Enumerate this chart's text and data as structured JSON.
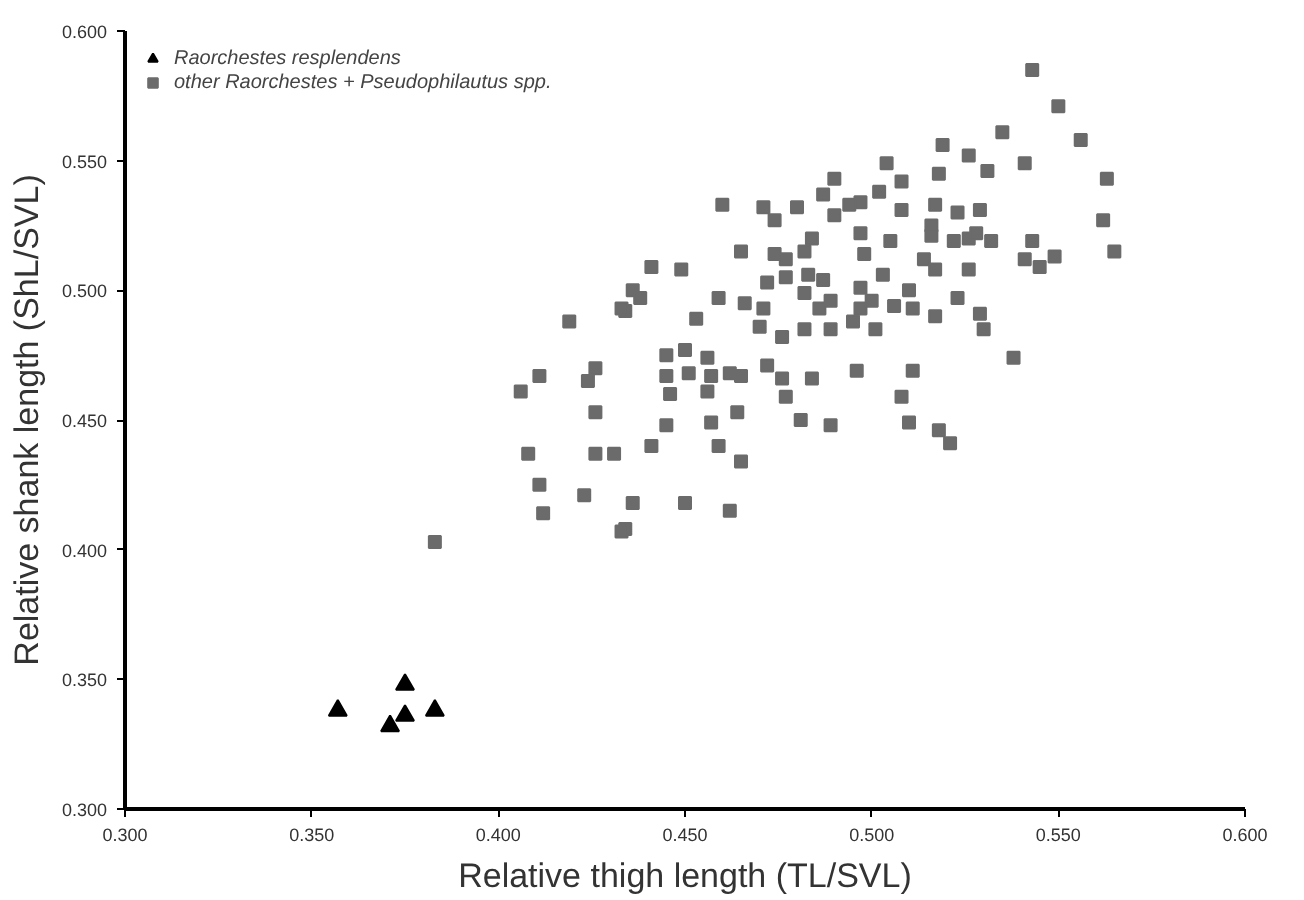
{
  "chart_data": {
    "type": "scatter",
    "xlabel": "Relative thigh length (TL/SVL)",
    "ylabel": "Relative shank length (ShL/SVL)",
    "xlim": [
      0.3,
      0.6
    ],
    "ylim": [
      0.3,
      0.6
    ],
    "xticks": [
      {
        "value": 0.3,
        "label": "0.300"
      },
      {
        "value": 0.35,
        "label": "0.350"
      },
      {
        "value": 0.4,
        "label": "0.400"
      },
      {
        "value": 0.45,
        "label": "0.450"
      },
      {
        "value": 0.5,
        "label": "0.500"
      },
      {
        "value": 0.55,
        "label": "0.550"
      },
      {
        "value": 0.6,
        "label": "0.600"
      }
    ],
    "yticks": [
      {
        "value": 0.3,
        "label": "0.300"
      },
      {
        "value": 0.35,
        "label": "0.350"
      },
      {
        "value": 0.4,
        "label": "0.400"
      },
      {
        "value": 0.45,
        "label": "0.450"
      },
      {
        "value": 0.5,
        "label": "0.500"
      },
      {
        "value": 0.55,
        "label": "0.550"
      },
      {
        "value": 0.6,
        "label": "0.600"
      }
    ],
    "grid": false,
    "legend": "top left",
    "series": [
      {
        "name": "Raorchestes resplendens",
        "color": "#000000",
        "marker": "triangle",
        "x": [
          0.357,
          0.371,
          0.375,
          0.375,
          0.383
        ],
        "values": [
          0.338,
          0.332,
          0.348,
          0.336,
          0.338
        ]
      },
      {
        "name": "other Raorchestes + Pseudophilautus spp.",
        "color": "#6b6b6b",
        "marker": "square",
        "x": [
          0.543,
          0.55,
          0.556,
          0.535,
          0.541,
          0.563,
          0.562,
          0.565,
          0.519,
          0.526,
          0.531,
          0.518,
          0.504,
          0.508,
          0.49,
          0.487,
          0.502,
          0.497,
          0.494,
          0.49,
          0.48,
          0.471,
          0.474,
          0.46,
          0.508,
          0.517,
          0.523,
          0.529,
          0.516,
          0.497,
          0.505,
          0.516,
          0.522,
          0.526,
          0.528,
          0.532,
          0.543,
          0.541,
          0.545,
          0.549,
          0.484,
          0.465,
          0.474,
          0.477,
          0.482,
          0.498,
          0.514,
          0.517,
          0.526,
          0.441,
          0.449,
          0.436,
          0.438,
          0.434,
          0.419,
          0.459,
          0.466,
          0.472,
          0.477,
          0.483,
          0.487,
          0.482,
          0.471,
          0.486,
          0.489,
          0.497,
          0.503,
          0.497,
          0.5,
          0.506,
          0.51,
          0.511,
          0.517,
          0.523,
          0.529,
          0.53,
          0.538,
          0.453,
          0.47,
          0.476,
          0.482,
          0.489,
          0.495,
          0.501,
          0.445,
          0.45,
          0.456,
          0.426,
          0.424,
          0.445,
          0.451,
          0.457,
          0.462,
          0.465,
          0.472,
          0.476,
          0.484,
          0.496,
          0.511,
          0.508,
          0.446,
          0.456,
          0.477,
          0.426,
          0.431,
          0.441,
          0.445,
          0.457,
          0.464,
          0.459,
          0.465,
          0.481,
          0.489,
          0.51,
          0.518,
          0.521,
          0.423,
          0.436,
          0.45,
          0.462,
          0.434,
          0.408,
          0.411,
          0.412,
          0.433,
          0.426,
          0.433,
          0.411,
          0.406,
          0.383
        ],
        "values": [
          0.585,
          0.571,
          0.558,
          0.561,
          0.549,
          0.543,
          0.527,
          0.515,
          0.556,
          0.552,
          0.546,
          0.545,
          0.549,
          0.542,
          0.543,
          0.537,
          0.538,
          0.534,
          0.533,
          0.529,
          0.532,
          0.532,
          0.527,
          0.533,
          0.531,
          0.533,
          0.53,
          0.531,
          0.525,
          0.522,
          0.519,
          0.521,
          0.519,
          0.52,
          0.522,
          0.519,
          0.519,
          0.512,
          0.509,
          0.513,
          0.52,
          0.515,
          0.514,
          0.512,
          0.515,
          0.514,
          0.512,
          0.508,
          0.508,
          0.509,
          0.508,
          0.5,
          0.497,
          0.492,
          0.488,
          0.497,
          0.495,
          0.503,
          0.505,
          0.506,
          0.504,
          0.499,
          0.493,
          0.493,
          0.496,
          0.501,
          0.506,
          0.493,
          0.496,
          0.494,
          0.5,
          0.493,
          0.49,
          0.497,
          0.491,
          0.485,
          0.474,
          0.489,
          0.486,
          0.482,
          0.485,
          0.485,
          0.488,
          0.485,
          0.475,
          0.477,
          0.474,
          0.47,
          0.465,
          0.467,
          0.468,
          0.467,
          0.468,
          0.467,
          0.471,
          0.466,
          0.466,
          0.469,
          0.469,
          0.459,
          0.46,
          0.461,
          0.459,
          0.437,
          0.437,
          0.44,
          0.448,
          0.449,
          0.453,
          0.44,
          0.434,
          0.45,
          0.448,
          0.449,
          0.446,
          0.441,
          0.421,
          0.418,
          0.418,
          0.415,
          0.408,
          0.437,
          0.425,
          0.414,
          0.407,
          0.453,
          0.493,
          0.467,
          0.461,
          0.403
        ]
      }
    ]
  }
}
